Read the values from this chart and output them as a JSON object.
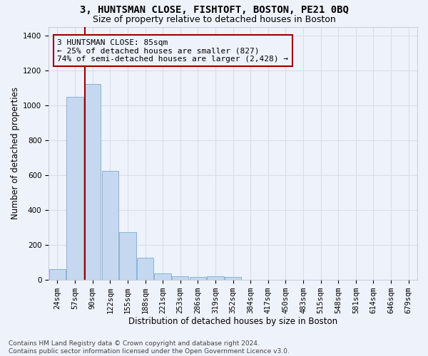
{
  "title": "3, HUNTSMAN CLOSE, FISHTOFT, BOSTON, PE21 0BQ",
  "subtitle": "Size of property relative to detached houses in Boston",
  "xlabel": "Distribution of detached houses by size in Boston",
  "ylabel": "Number of detached properties",
  "bar_labels": [
    "24sqm",
    "57sqm",
    "90sqm",
    "122sqm",
    "155sqm",
    "188sqm",
    "221sqm",
    "253sqm",
    "286sqm",
    "319sqm",
    "352sqm",
    "384sqm",
    "417sqm",
    "450sqm",
    "483sqm",
    "515sqm",
    "548sqm",
    "581sqm",
    "614sqm",
    "646sqm",
    "679sqm"
  ],
  "bar_values": [
    62,
    1048,
    1122,
    625,
    275,
    125,
    38,
    20,
    18,
    20,
    15,
    0,
    0,
    0,
    0,
    0,
    0,
    0,
    0,
    0,
    0
  ],
  "bar_color": "#c5d8f0",
  "bar_edgecolor": "#7aadd4",
  "vline_color": "#990000",
  "vline_x_index": 1.55,
  "annotation_text": "3 HUNTSMAN CLOSE: 85sqm\n← 25% of detached houses are smaller (827)\n74% of semi-detached houses are larger (2,428) →",
  "annotation_box_edgecolor": "#990000",
  "ylim": [
    0,
    1450
  ],
  "yticks": [
    0,
    200,
    400,
    600,
    800,
    1000,
    1200,
    1400
  ],
  "footer_line1": "Contains HM Land Registry data © Crown copyright and database right 2024.",
  "footer_line2": "Contains public sector information licensed under the Open Government Licence v3.0.",
  "background_color": "#eef2fb",
  "grid_color": "#d8dee8",
  "title_fontsize": 10,
  "subtitle_fontsize": 9,
  "axis_label_fontsize": 8.5,
  "tick_fontsize": 7.5,
  "annotation_fontsize": 8,
  "footer_fontsize": 6.5
}
